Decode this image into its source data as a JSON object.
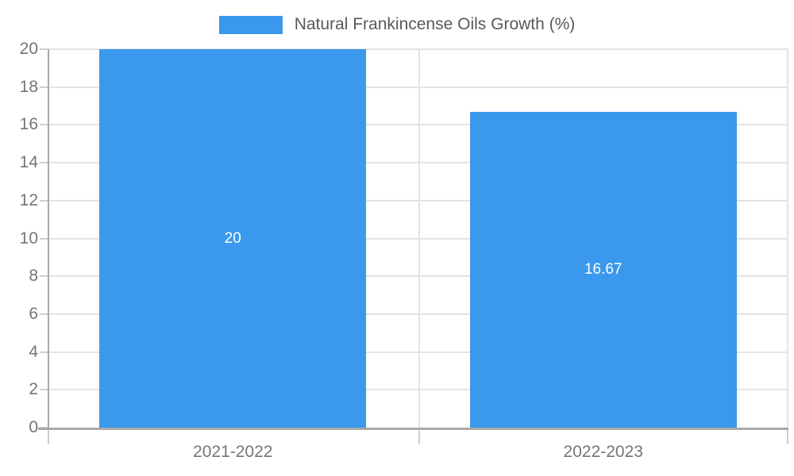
{
  "chart_data": {
    "type": "bar",
    "title": "Natural Frankincense Oils Growth (%)",
    "categories": [
      "2021-2022",
      "2022-2023"
    ],
    "values": [
      20,
      16.67
    ],
    "value_labels": [
      "20",
      "16.67"
    ],
    "xlabel": "",
    "ylabel": "",
    "ylim": [
      0,
      20
    ],
    "ytick_step": 2,
    "ytick_labels": [
      "0",
      "2",
      "4",
      "6",
      "8",
      "10",
      "12",
      "14",
      "16",
      "18",
      "20"
    ],
    "grid": true,
    "legend_position": "top",
    "colors": {
      "bar": "#3a99ec",
      "value_label": "#ffffff",
      "grid": "#e4e4e4",
      "axis": "#a9a9a9",
      "tick": "#cfcfcf",
      "axis_text": "#757575",
      "legend_text": "#595959"
    }
  }
}
